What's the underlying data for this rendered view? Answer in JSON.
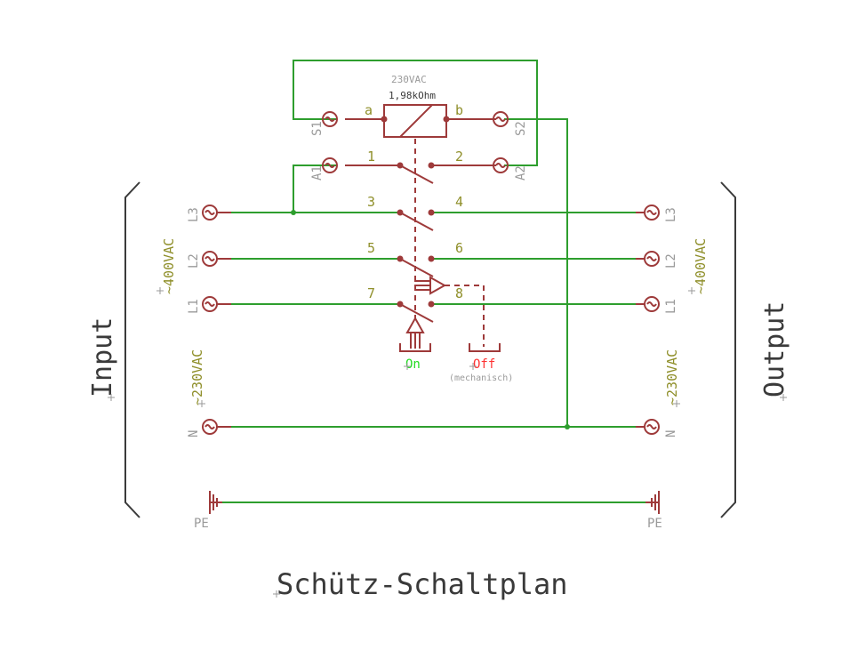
{
  "title": "Schütz-Schaltplan",
  "side_labels": {
    "input": "Input",
    "output": "Output"
  },
  "coil": {
    "voltage": "230VAC",
    "resistance": "1,98kOhm",
    "pin_a": "a",
    "pin_b": "b"
  },
  "coil_terminals": {
    "s1": "S1",
    "s2": "S2",
    "a1": "A1",
    "a2": "A2"
  },
  "contact_numbers": [
    "1",
    "2",
    "3",
    "4",
    "5",
    "6",
    "7",
    "8"
  ],
  "phase_labels": {
    "l3": "L3",
    "l2": "L2",
    "l1": "L1",
    "n": "N",
    "pe": "PE"
  },
  "voltages": {
    "three_phase": "~400VAC",
    "single_phase": "~230VAC"
  },
  "actuators": {
    "on": "On",
    "off": "Off",
    "off_note": "(mechanisch)"
  },
  "colors": {
    "wire": "#2e9e2e",
    "symbol": "#9e3a3a",
    "label_olive": "#8f8f2a",
    "pin_gray": "#9a9a9a",
    "bracket": "#3a3a3a",
    "on_green": "#22dd22",
    "off_red": "#ff3333",
    "dashed_red": "#c04040"
  }
}
